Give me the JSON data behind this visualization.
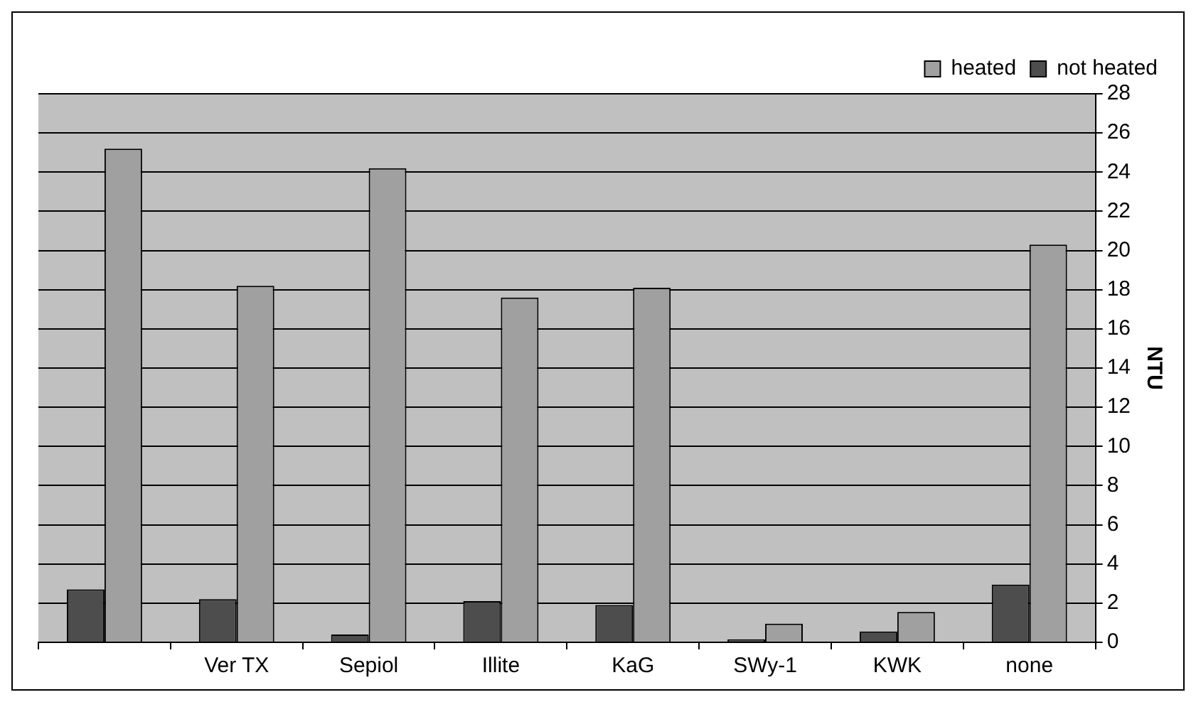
{
  "chart_data": {
    "type": "bar",
    "ylabel": "NTU",
    "categories": [
      null,
      "Ver TX",
      "Sepiol",
      "Illite",
      "KaG",
      "SWy-1",
      "KWK",
      "none"
    ],
    "series": [
      {
        "name": "not heated",
        "color": "#4d4d4d",
        "values": [
          2.7,
          2.2,
          0.4,
          2.1,
          1.9,
          0.15,
          0.55,
          2.95
        ]
      },
      {
        "name": "heated",
        "color": "#a0a0a0",
        "values": [
          25.2,
          18.2,
          24.2,
          17.6,
          18.1,
          0.95,
          1.55,
          20.3
        ]
      }
    ],
    "ylim": [
      0,
      28
    ],
    "yticks": [
      0,
      2,
      4,
      6,
      8,
      10,
      12,
      14,
      16,
      18,
      20,
      22,
      24,
      26,
      28
    ],
    "grid": "y",
    "legend": "top right"
  }
}
